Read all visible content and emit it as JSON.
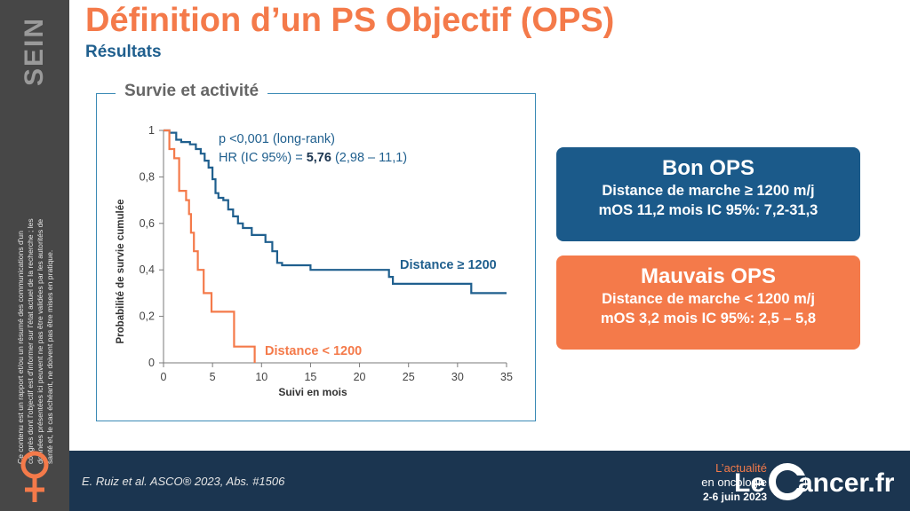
{
  "sidebar": {
    "section_label": "SEIN",
    "disclaimer": "Ce contenu est un rapport et/ou un résumé des communications d'un congrès dont l'objectif est d'informer sur l'état actuel de la recherche ; les données présentées ici peuvent ne pas être validées par les autorités de santé et, le cas échéant, ne doivent pas être mises en pratique."
  },
  "header": {
    "title": "Définition d’un PS Objectif (OPS)",
    "subtitle": "Résultats"
  },
  "chart_box": {
    "label": "Survie et activité"
  },
  "chart_data": {
    "type": "line",
    "title": "",
    "xlabel": "Suivi en mois",
    "ylabel": "Probabilité de survie cumulée",
    "xlim": [
      0,
      35
    ],
    "ylim": [
      0,
      1
    ],
    "xticks": [
      0,
      5,
      10,
      15,
      20,
      25,
      30,
      35
    ],
    "yticks": [
      {
        "value": 0,
        "label": "0"
      },
      {
        "value": 0.2,
        "label": "0,2"
      },
      {
        "value": 0.4,
        "label": "0,4"
      },
      {
        "value": 0.6,
        "label": "0,6"
      },
      {
        "value": 0.8,
        "label": "0,8"
      },
      {
        "value": 1,
        "label": "1"
      }
    ],
    "grid": false,
    "step": true,
    "annotation": {
      "line1": "p <0,001 (long-rank)",
      "line2_prefix": "HR (IC 95%) = ",
      "line2_bold": "5,76",
      "line2_suffix": " (2,98 – 11,1)"
    },
    "series": [
      {
        "name": "Distance ≥ 1200",
        "color": "#1f5f8e",
        "x": [
          0,
          0.6,
          1.3,
          1.8,
          2.7,
          3.3,
          3.8,
          4.2,
          4.6,
          5.0,
          5.3,
          5.6,
          6.1,
          6.6,
          7.1,
          7.6,
          8.1,
          9.0,
          10.4,
          11.1,
          11.6,
          12.1,
          15.0,
          23.0,
          23.4,
          31.4,
          35.0
        ],
        "y": [
          1,
          0.99,
          0.96,
          0.95,
          0.94,
          0.92,
          0.9,
          0.87,
          0.84,
          0.79,
          0.73,
          0.71,
          0.7,
          0.66,
          0.63,
          0.6,
          0.58,
          0.55,
          0.52,
          0.48,
          0.43,
          0.42,
          0.4,
          0.37,
          0.34,
          0.3,
          0.3
        ]
      },
      {
        "name": "Distance < 1200",
        "color": "#f47a4a",
        "x": [
          0,
          0.6,
          1.1,
          1.6,
          2.3,
          2.6,
          2.8,
          3.1,
          3.5,
          4.1,
          4.9,
          7.2,
          9.3
        ],
        "y": [
          1,
          0.92,
          0.88,
          0.74,
          0.7,
          0.64,
          0.56,
          0.48,
          0.4,
          0.3,
          0.22,
          0.07,
          0
        ]
      }
    ]
  },
  "series_labels": {
    "high": "Distance ≥ 1200",
    "low": "Distance < 1200"
  },
  "good_ops": {
    "title": "Bon OPS",
    "line1": "Distance de marche ≥ 1200 m/j",
    "line2": "mOS 11,2 mois IC 95%: 7,2-31,3",
    "color": "#1b5a8a"
  },
  "bad_ops": {
    "title": "Mauvais OPS",
    "line1": "Distance de marche < 1200 m/j",
    "line2": "mOS 3,2 mois IC 95%: 2,5 – 5,8",
    "color": "#f47a4a"
  },
  "footer": {
    "citation": "E. Ruiz et al. ASCO® 2023, Abs. #1506",
    "actu_line1": "L’actualité",
    "actu_line2": "en oncologie",
    "dates": "2-6 juin 2023",
    "logo_text": "Le Cancer.fr"
  }
}
